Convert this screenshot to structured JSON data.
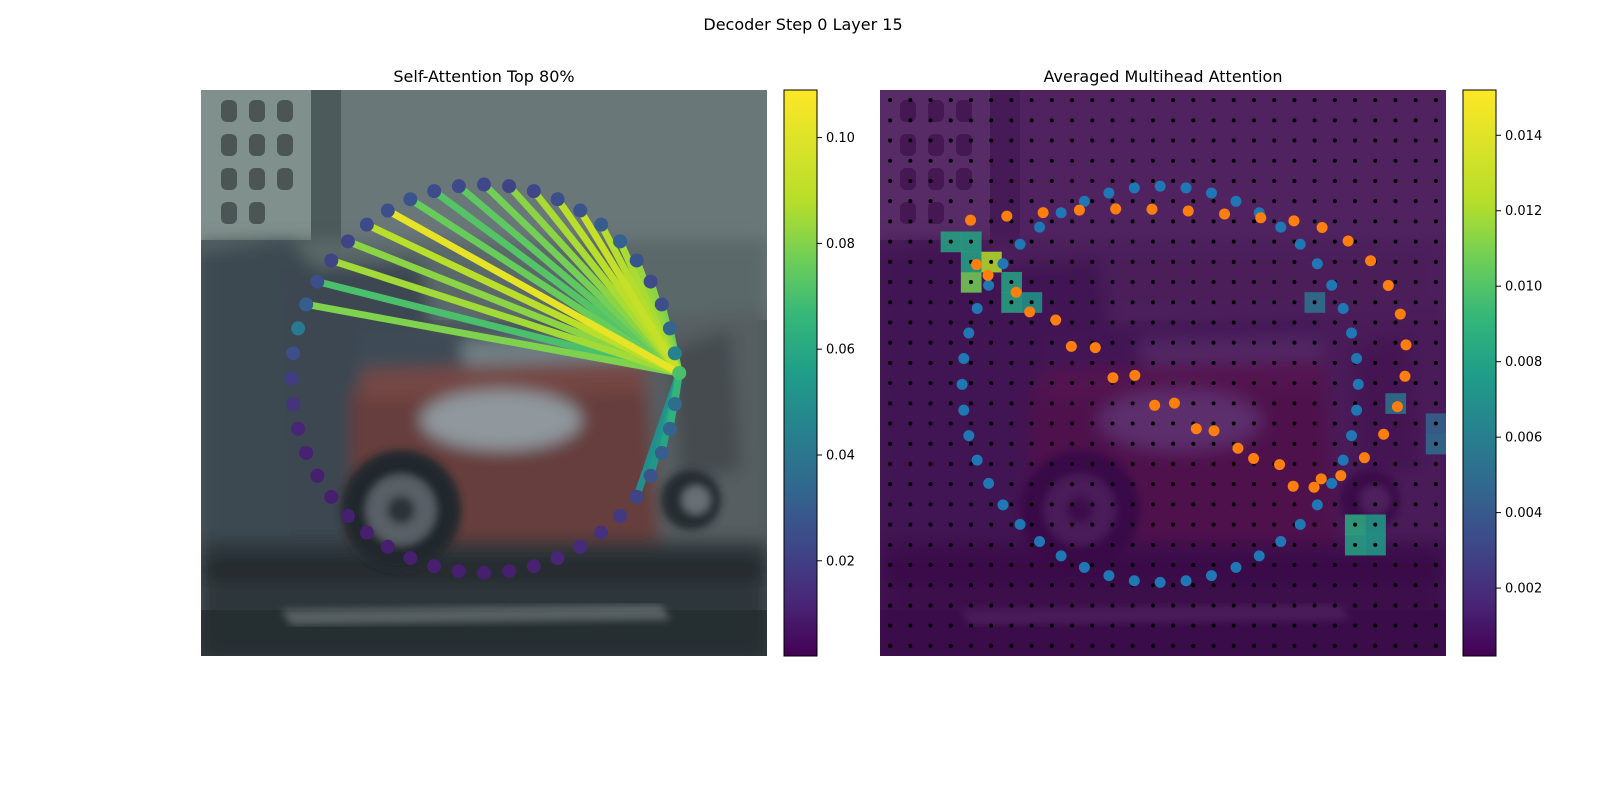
{
  "figure": {
    "title": "Decoder Step 0 Layer 15"
  },
  "chart_data": [
    {
      "type": "scatter",
      "title": "Self-Attention Top 80%",
      "background": "blurred photo of parked cars (red car in center, grey car at right)",
      "colormap": "viridis",
      "colorbar": {
        "ticks": [
          "0.02",
          "0.04",
          "0.06",
          "0.08",
          "0.10"
        ],
        "range": [
          0.002,
          0.109
        ]
      },
      "query_point": [
        0.845,
        0.5
      ],
      "points": {
        "count": 48,
        "shape": "circle",
        "values": [
          0.078,
          0.05,
          0.037,
          0.028,
          0.026,
          0.03,
          0.035,
          0.033,
          0.03,
          0.028,
          0.025,
          0.024,
          0.025,
          0.026,
          0.027,
          0.03,
          0.028,
          0.026,
          0.024,
          0.024,
          0.028,
          0.034,
          0.046,
          0.028,
          0.021,
          0.018,
          0.013,
          0.012,
          0.011,
          0.011,
          0.011,
          0.011,
          0.011,
          0.011,
          0.011,
          0.011,
          0.011,
          0.011,
          0.012,
          0.013,
          0.015,
          0.017,
          0.02,
          0.024,
          0.03,
          0.034,
          0.036,
          0.04
        ]
      },
      "edges": [
        {
          "to": 1,
          "weight": 0.078
        },
        {
          "to": 2,
          "weight": 0.082
        },
        {
          "to": 3,
          "weight": 0.087
        },
        {
          "to": 4,
          "weight": 0.09
        },
        {
          "to": 5,
          "weight": 0.092
        },
        {
          "to": 6,
          "weight": 0.095
        },
        {
          "to": 7,
          "weight": 0.097
        },
        {
          "to": 8,
          "weight": 0.1
        },
        {
          "to": 9,
          "weight": 0.098
        },
        {
          "to": 10,
          "weight": 0.095
        },
        {
          "to": 11,
          "weight": 0.09
        },
        {
          "to": 12,
          "weight": 0.086
        },
        {
          "to": 13,
          "weight": 0.082
        },
        {
          "to": 14,
          "weight": 0.08
        },
        {
          "to": 15,
          "weight": 0.084
        },
        {
          "to": 16,
          "weight": 0.105
        },
        {
          "to": 17,
          "weight": 0.098
        },
        {
          "to": 18,
          "weight": 0.09
        },
        {
          "to": 19,
          "weight": 0.094
        },
        {
          "to": 20,
          "weight": 0.078
        },
        {
          "to": 21,
          "weight": 0.088
        },
        {
          "to": 43,
          "weight": 0.055
        },
        {
          "to": 44,
          "weight": 0.058
        },
        {
          "to": 45,
          "weight": 0.065
        },
        {
          "to": 46,
          "weight": 0.07
        },
        {
          "to": 47,
          "weight": 0.072
        }
      ]
    },
    {
      "type": "heatmap",
      "title": "Averaged Multihead Attention",
      "background": "blurred photo of parked cars overlaid with attention heatmap",
      "colormap": "viridis",
      "colorbar": {
        "ticks": [
          "0.002",
          "0.004",
          "0.006",
          "0.008",
          "0.010",
          "0.012",
          "0.014"
        ],
        "range": [
          0.0002,
          0.0152
        ]
      },
      "grid": {
        "rows": 28,
        "cols": 28
      },
      "hotspots": [
        {
          "row": 8,
          "col": 5,
          "value": 0.0135
        },
        {
          "row": 9,
          "col": 4,
          "value": 0.012
        },
        {
          "row": 9,
          "col": 6,
          "value": 0.009
        },
        {
          "row": 8,
          "col": 4,
          "value": 0.009
        },
        {
          "row": 7,
          "col": 3,
          "value": 0.009
        },
        {
          "row": 10,
          "col": 6,
          "value": 0.009
        },
        {
          "row": 10,
          "col": 7,
          "value": 0.008
        },
        {
          "row": 7,
          "col": 4,
          "value": 0.009
        },
        {
          "row": 21,
          "col": 23,
          "value": 0.0095
        },
        {
          "row": 22,
          "col": 23,
          "value": 0.009
        },
        {
          "row": 21,
          "col": 24,
          "value": 0.0085
        },
        {
          "row": 22,
          "col": 24,
          "value": 0.0085
        },
        {
          "row": 10,
          "col": 21,
          "value": 0.006
        },
        {
          "row": 15,
          "col": 25,
          "value": 0.006
        },
        {
          "row": 17,
          "col": 27,
          "value": 0.0055
        },
        {
          "row": 16,
          "col": 27,
          "value": 0.005
        }
      ],
      "series": [
        {
          "name": "",
          "color": "#1f77b4",
          "count": 48
        },
        {
          "name": "",
          "color": "#ff7f0e",
          "count": 40
        }
      ]
    }
  ]
}
